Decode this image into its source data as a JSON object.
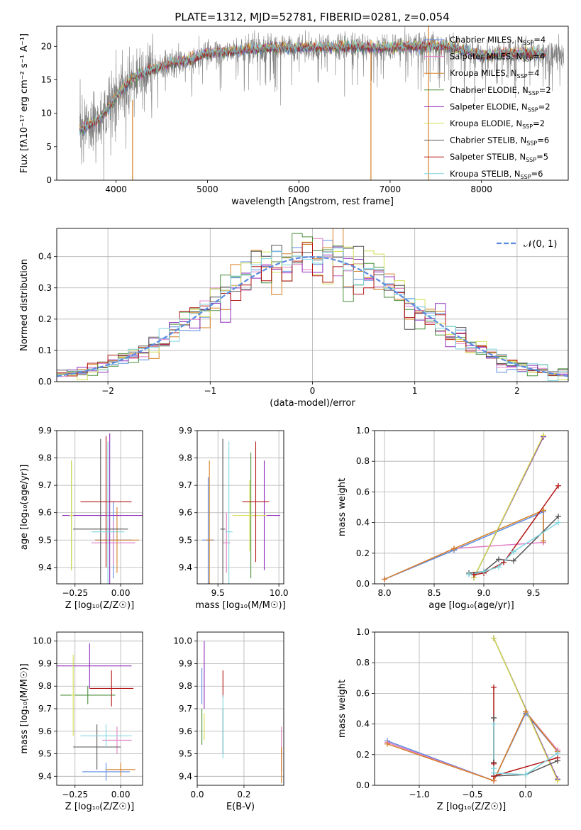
{
  "figure_title": "PLATE=1312, MJD=52781, FIBERID=0281, z=0.054",
  "models": [
    {
      "name": "Chabrier MILES",
      "nssp": "4",
      "color": "#5b8be0"
    },
    {
      "name": "Salpeter MILES",
      "nssp": "4",
      "color": "#e07ec5"
    },
    {
      "name": "Kroupa MILES",
      "nssp": "4",
      "color": "#d68025"
    },
    {
      "name": "Chabrier ELODIE",
      "nssp": "2",
      "color": "#4a8f3a"
    },
    {
      "name": "Salpeter ELODIE",
      "nssp": "2",
      "color": "#8f2bbd"
    },
    {
      "name": "Kroupa ELODIE",
      "nssp": "2",
      "color": "#d2e055"
    },
    {
      "name": "Chabrier STELIB",
      "nssp": "6",
      "color": "#555555"
    },
    {
      "name": "Salpeter STELIB",
      "nssp": "5",
      "color": "#b31515"
    },
    {
      "name": "Kroupa STELIB",
      "nssp": "6",
      "color": "#7fd6df"
    }
  ],
  "chart_data": [
    {
      "id": "spectrum",
      "type": "line",
      "xlabel": "wavelength [Angstrom, rest frame]",
      "ylabel": "Flux [fλ10⁻¹⁷ erg cm⁻² s⁻¹ A⁻¹]",
      "xlim": [
        3350,
        8950
      ],
      "ylim": [
        0,
        23
      ],
      "xticks": [
        4000,
        5000,
        6000,
        7000,
        8000
      ],
      "yticks": [
        0,
        5,
        10,
        15,
        20
      ],
      "data_range": [
        3600,
        8900
      ],
      "continuum": {
        "x": [
          3600,
          3800,
          3900,
          4000,
          4100,
          4200,
          4400,
          4600,
          4800,
          5000,
          5200,
          5400,
          5600,
          5800,
          6000,
          6200,
          6400,
          6600,
          6800,
          7000,
          7200,
          7400,
          7600,
          7800,
          8000,
          8300,
          8600,
          8900
        ],
        "y": [
          7.5,
          9.0,
          10.5,
          12.5,
          14.0,
          15.5,
          16.5,
          17.5,
          18.0,
          19.0,
          19.2,
          19.5,
          19.7,
          19.8,
          19.8,
          19.9,
          19.9,
          20.0,
          19.8,
          19.8,
          20.0,
          20.0,
          20.0,
          19.5,
          18.5,
          19.0,
          19.0,
          18.5
        ]
      },
      "data_color": "#808080",
      "legend_position": "right"
    },
    {
      "id": "residuals",
      "type": "step",
      "xlabel": "(data-model)/error",
      "ylabel": "Normed distribution",
      "xlim": [
        -2.5,
        2.5
      ],
      "ylim": [
        0,
        0.49
      ],
      "xticks": [
        -2,
        -1,
        0,
        1,
        2
      ],
      "yticks": [
        0.0,
        0.1,
        0.2,
        0.3,
        0.4
      ],
      "bin_width": 0.1,
      "gaussian_label": "𝒩(0, 1)",
      "gaussian_color": "#5b8be0",
      "legend_position": "upper right",
      "grid": true
    },
    {
      "id": "z_age",
      "type": "errorbar",
      "xlabel": "Z [log₁₀(Z/Z☉)]",
      "ylabel": "age  [log₁₀(age/yr)]",
      "xlim": [
        -0.35,
        0.12
      ],
      "ylim": [
        9.34,
        9.9
      ],
      "xticks": [
        -0.25,
        0.0
      ],
      "yticks": [
        9.4,
        9.5,
        9.6,
        9.7,
        9.8,
        9.9
      ],
      "points": [
        {
          "model": 0,
          "x": -0.04,
          "xerr": 0.1,
          "y": 9.5,
          "yerr": 0.14
        },
        {
          "model": 1,
          "x": -0.04,
          "xerr": 0.12,
          "y": 9.49,
          "yerr": 0.08
        },
        {
          "model": 2,
          "x": -0.02,
          "xerr": 0.12,
          "y": 9.5,
          "yerr": 0.12
        },
        {
          "model": 3,
          "x": -0.27,
          "xerr": 0.01,
          "y": 9.59,
          "yerr": 0.2
        },
        {
          "model": 4,
          "x": -0.06,
          "xerr": 0.26,
          "y": 9.59,
          "yerr": 0.3
        },
        {
          "model": 5,
          "x": -0.27,
          "xerr": 0.01,
          "y": 9.59,
          "yerr": 0.2
        },
        {
          "model": 6,
          "x": -0.11,
          "xerr": 0.15,
          "y": 9.54,
          "yerr": 0.33
        },
        {
          "model": 7,
          "x": -0.08,
          "xerr": 0.14,
          "y": 9.64,
          "yerr": 0.24
        },
        {
          "model": 8,
          "x": -0.07,
          "xerr": 0.09,
          "y": 9.53,
          "yerr": 0.33
        }
      ],
      "grid": true
    },
    {
      "id": "mass_age",
      "type": "errorbar",
      "xlabel": "mass [log₁₀(M/M☉)]",
      "ylabel": "",
      "xlim": [
        9.33,
        10.04
      ],
      "ylim": [
        9.34,
        9.9
      ],
      "xticks": [
        9.5,
        10.0
      ],
      "yticks": [
        9.4,
        9.5,
        9.6,
        9.7,
        9.8,
        9.9
      ],
      "points": [
        {
          "model": 0,
          "x": 9.42,
          "xerr": 0.05,
          "y": 9.5,
          "yerr": 0.23
        },
        {
          "model": 1,
          "x": 9.57,
          "xerr": 0.03,
          "y": 9.49,
          "yerr": 0.11
        },
        {
          "model": 2,
          "x": 9.43,
          "xerr": 0.03,
          "y": 9.5,
          "yerr": 0.29
        },
        {
          "model": 3,
          "x": 9.77,
          "xerr": 0.01,
          "y": 9.59,
          "yerr": 0.23
        },
        {
          "model": 4,
          "x": 9.88,
          "xerr": 0.13,
          "y": 9.59,
          "yerr": 0.2
        },
        {
          "model": 5,
          "x": 9.76,
          "xerr": 0.14,
          "y": 9.59,
          "yerr": 0.13
        },
        {
          "model": 6,
          "x": 9.54,
          "xerr": 0.02,
          "y": 9.54,
          "yerr": 0.33
        },
        {
          "model": 7,
          "x": 9.81,
          "xerr": 0.11,
          "y": 9.64,
          "yerr": 0.22
        },
        {
          "model": 8,
          "x": 9.59,
          "xerr": 0.03,
          "y": 9.53,
          "yerr": 0.33
        }
      ],
      "grid": true
    },
    {
      "id": "age_weight",
      "type": "line",
      "xlabel": "age  [log₁₀(age/yr)]",
      "ylabel": "mass weight",
      "xlim": [
        7.9,
        9.85
      ],
      "ylim": [
        0,
        1.0
      ],
      "xticks": [
        8.0,
        8.5,
        9.0,
        9.5
      ],
      "yticks": [
        0.0,
        0.2,
        0.4,
        0.6,
        0.8,
        1.0
      ],
      "series": [
        {
          "model": 0,
          "x": [
            8.0,
            8.7,
            9.6,
            9.6
          ],
          "y": [
            0.03,
            0.22,
            0.47,
            0.28
          ]
        },
        {
          "model": 1,
          "x": [
            8.0,
            8.7,
            9.6,
            9.6
          ],
          "y": [
            0.03,
            0.23,
            0.27,
            0.27
          ]
        },
        {
          "model": 2,
          "x": [
            8.0,
            8.7,
            9.6,
            9.6
          ],
          "y": [
            0.03,
            0.23,
            0.48,
            0.28
          ]
        },
        {
          "model": 3,
          "x": [
            8.9,
            9.6
          ],
          "y": [
            0.04,
            0.96
          ]
        },
        {
          "model": 4,
          "x": [
            8.9,
            9.6
          ],
          "y": [
            0.04,
            0.96
          ]
        },
        {
          "model": 5,
          "x": [
            8.9,
            9.6
          ],
          "y": [
            0.04,
            0.97
          ]
        },
        {
          "model": 6,
          "x": [
            8.85,
            9.0,
            9.15,
            9.3,
            9.75
          ],
          "y": [
            0.07,
            0.08,
            0.16,
            0.15,
            0.44
          ]
        },
        {
          "model": 7,
          "x": [
            8.9,
            9.0,
            9.2,
            9.75
          ],
          "y": [
            0.06,
            0.07,
            0.14,
            0.64
          ]
        },
        {
          "model": 8,
          "x": [
            8.85,
            9.0,
            9.15,
            9.3,
            9.75
          ],
          "y": [
            0.06,
            0.08,
            0.11,
            0.21,
            0.4
          ]
        }
      ],
      "grid": true
    },
    {
      "id": "z_mass",
      "type": "errorbar",
      "xlabel": "Z [log₁₀(Z/Z☉)]",
      "ylabel": "mass [log₁₀(M/M☉)]",
      "xlim": [
        -0.35,
        0.12
      ],
      "ylim": [
        9.36,
        10.04
      ],
      "xticks": [
        -0.25,
        0.0
      ],
      "yticks": [
        9.4,
        9.5,
        9.6,
        9.7,
        9.8,
        9.9,
        10.0
      ],
      "points": [
        {
          "model": 0,
          "x": -0.08,
          "xerr": 0.13,
          "y": 9.42,
          "yerr": 0.04
        },
        {
          "model": 1,
          "x": -0.02,
          "xerr": 0.08,
          "y": 9.56,
          "yerr": 0.06
        },
        {
          "model": 2,
          "x": 0.0,
          "xerr": 0.08,
          "y": 9.43,
          "yerr": 0.03
        },
        {
          "model": 3,
          "x": -0.18,
          "xerr": 0.15,
          "y": 9.76,
          "yerr": 0.04
        },
        {
          "model": 4,
          "x": -0.17,
          "xerr": 0.23,
          "y": 9.89,
          "yerr": 0.1
        },
        {
          "model": 5,
          "x": -0.26,
          "xerr": 0.01,
          "y": 9.76,
          "yerr": 0.18
        },
        {
          "model": 6,
          "x": -0.13,
          "xerr": 0.13,
          "y": 9.53,
          "yerr": 0.1
        },
        {
          "model": 7,
          "x": -0.05,
          "xerr": 0.12,
          "y": 9.79,
          "yerr": 0.08
        },
        {
          "model": 8,
          "x": -0.08,
          "xerr": 0.14,
          "y": 9.58,
          "yerr": 0.05
        }
      ],
      "grid": true
    },
    {
      "id": "ebv_mass",
      "type": "errorbar",
      "xlabel": "E(B-V)",
      "ylabel": "",
      "xlim": [
        0.0,
        0.37
      ],
      "ylim": [
        9.36,
        10.04
      ],
      "xticks": [
        0.0,
        0.2
      ],
      "yticks": [
        9.4,
        9.5,
        9.6,
        9.7,
        9.8,
        9.9,
        10.0
      ],
      "points": [
        {
          "model": 0,
          "x": 0.02,
          "xerr": 0.0,
          "y": 9.8,
          "yerr": 0.08
        },
        {
          "model": 1,
          "x": 0.36,
          "xerr": 0.0,
          "y": 9.52,
          "yerr": 0.1
        },
        {
          "model": 2,
          "x": 0.36,
          "xerr": 0.0,
          "y": 9.45,
          "yerr": 0.08
        },
        {
          "model": 3,
          "x": 0.02,
          "xerr": 0.0,
          "y": 9.62,
          "yerr": 0.08
        },
        {
          "model": 4,
          "x": 0.03,
          "xerr": 0.0,
          "y": 9.85,
          "yerr": 0.15
        },
        {
          "model": 5,
          "x": 0.03,
          "xerr": 0.0,
          "y": 9.62,
          "yerr": 0.06
        },
        {
          "model": 6,
          "x": 0.11,
          "xerr": 0.0,
          "y": 9.6,
          "yerr": 0.1
        },
        {
          "model": 7,
          "x": 0.11,
          "xerr": 0.0,
          "y": 9.81,
          "yerr": 0.06
        },
        {
          "model": 8,
          "x": 0.11,
          "xerr": 0.0,
          "y": 9.62,
          "yerr": 0.14
        }
      ],
      "grid": true
    },
    {
      "id": "z_weight",
      "type": "line",
      "xlabel": "Z [log₁₀(Z/Z☉)]",
      "ylabel": "mass weight",
      "xlim": [
        -1.42,
        0.4
      ],
      "ylim": [
        0,
        1.0
      ],
      "xticks": [
        -1.0,
        -0.5,
        0.0
      ],
      "yticks": [
        0.0,
        0.2,
        0.4,
        0.6,
        0.8,
        1.0
      ],
      "series": [
        {
          "model": 0,
          "x": [
            -1.3,
            -0.3,
            0.0,
            0.3
          ],
          "y": [
            0.29,
            0.03,
            0.47,
            0.22
          ]
        },
        {
          "model": 1,
          "x": [
            -1.3,
            -0.3,
            0.0,
            0.3
          ],
          "y": [
            0.28,
            0.03,
            0.48,
            0.23
          ]
        },
        {
          "model": 2,
          "x": [
            -1.3,
            -0.3,
            0.0,
            0.3
          ],
          "y": [
            0.27,
            0.03,
            0.48,
            0.22
          ]
        },
        {
          "model": 3,
          "x": [
            -0.3,
            0.3
          ],
          "y": [
            0.96,
            0.04
          ]
        },
        {
          "model": 4,
          "x": [
            -0.3,
            0.3
          ],
          "y": [
            0.96,
            0.04
          ]
        },
        {
          "model": 5,
          "x": [
            -0.3,
            0.3
          ],
          "y": [
            0.96,
            0.03
          ]
        },
        {
          "model": 6,
          "x": [
            -0.3,
            -0.3,
            -0.3,
            0.0,
            0.3
          ],
          "y": [
            0.44,
            0.15,
            0.06,
            0.07,
            0.16
          ]
        },
        {
          "model": 7,
          "x": [
            -0.3,
            -0.3,
            -0.3,
            0.3
          ],
          "y": [
            0.64,
            0.14,
            0.06,
            0.18
          ]
        },
        {
          "model": 8,
          "x": [
            -0.3,
            -0.3,
            -0.3,
            0.0,
            0.3
          ],
          "y": [
            0.4,
            0.11,
            0.08,
            0.07,
            0.21
          ]
        }
      ],
      "grid": true
    }
  ]
}
